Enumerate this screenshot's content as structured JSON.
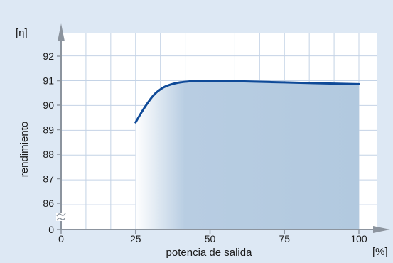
{
  "chart_data": {
    "type": "area",
    "y_unit": "[η]",
    "ylabel": "rendimiento",
    "xlabel": "potencia de salida",
    "x_unit": "[%]",
    "x_ticks": [
      0,
      25,
      50,
      75,
      100
    ],
    "y_ticks": [
      {
        "label": "0",
        "value": 0
      },
      {
        "label": "86",
        "value": 86
      },
      {
        "label": "87",
        "value": 87
      },
      {
        "label": "88",
        "value": 88
      },
      {
        "label": "89",
        "value": 89
      },
      {
        "label": "90",
        "value": 90
      },
      {
        "label": "91",
        "value": 91
      },
      {
        "label": "92",
        "value": 92
      }
    ],
    "axis_break": true,
    "xlim": [
      0,
      100
    ],
    "ylim": [
      85.5,
      92.5
    ],
    "grid": true,
    "series": [
      {
        "x": [
          25,
          28,
          31,
          34,
          37,
          40,
          43,
          47,
          55,
          65,
          75,
          85,
          100
        ],
        "y": [
          89.3,
          89.9,
          90.4,
          90.7,
          90.85,
          90.93,
          90.97,
          91.0,
          90.99,
          90.96,
          90.93,
          90.9,
          90.86
        ]
      }
    ],
    "colors": {
      "background": "#dde8f4",
      "plot_area": "#ffffff",
      "grid": "#c4d3e6",
      "axis": "#8c949e",
      "line": "#0f4a98",
      "fill": "#b2c9df",
      "text": "#1a1a1a"
    }
  }
}
